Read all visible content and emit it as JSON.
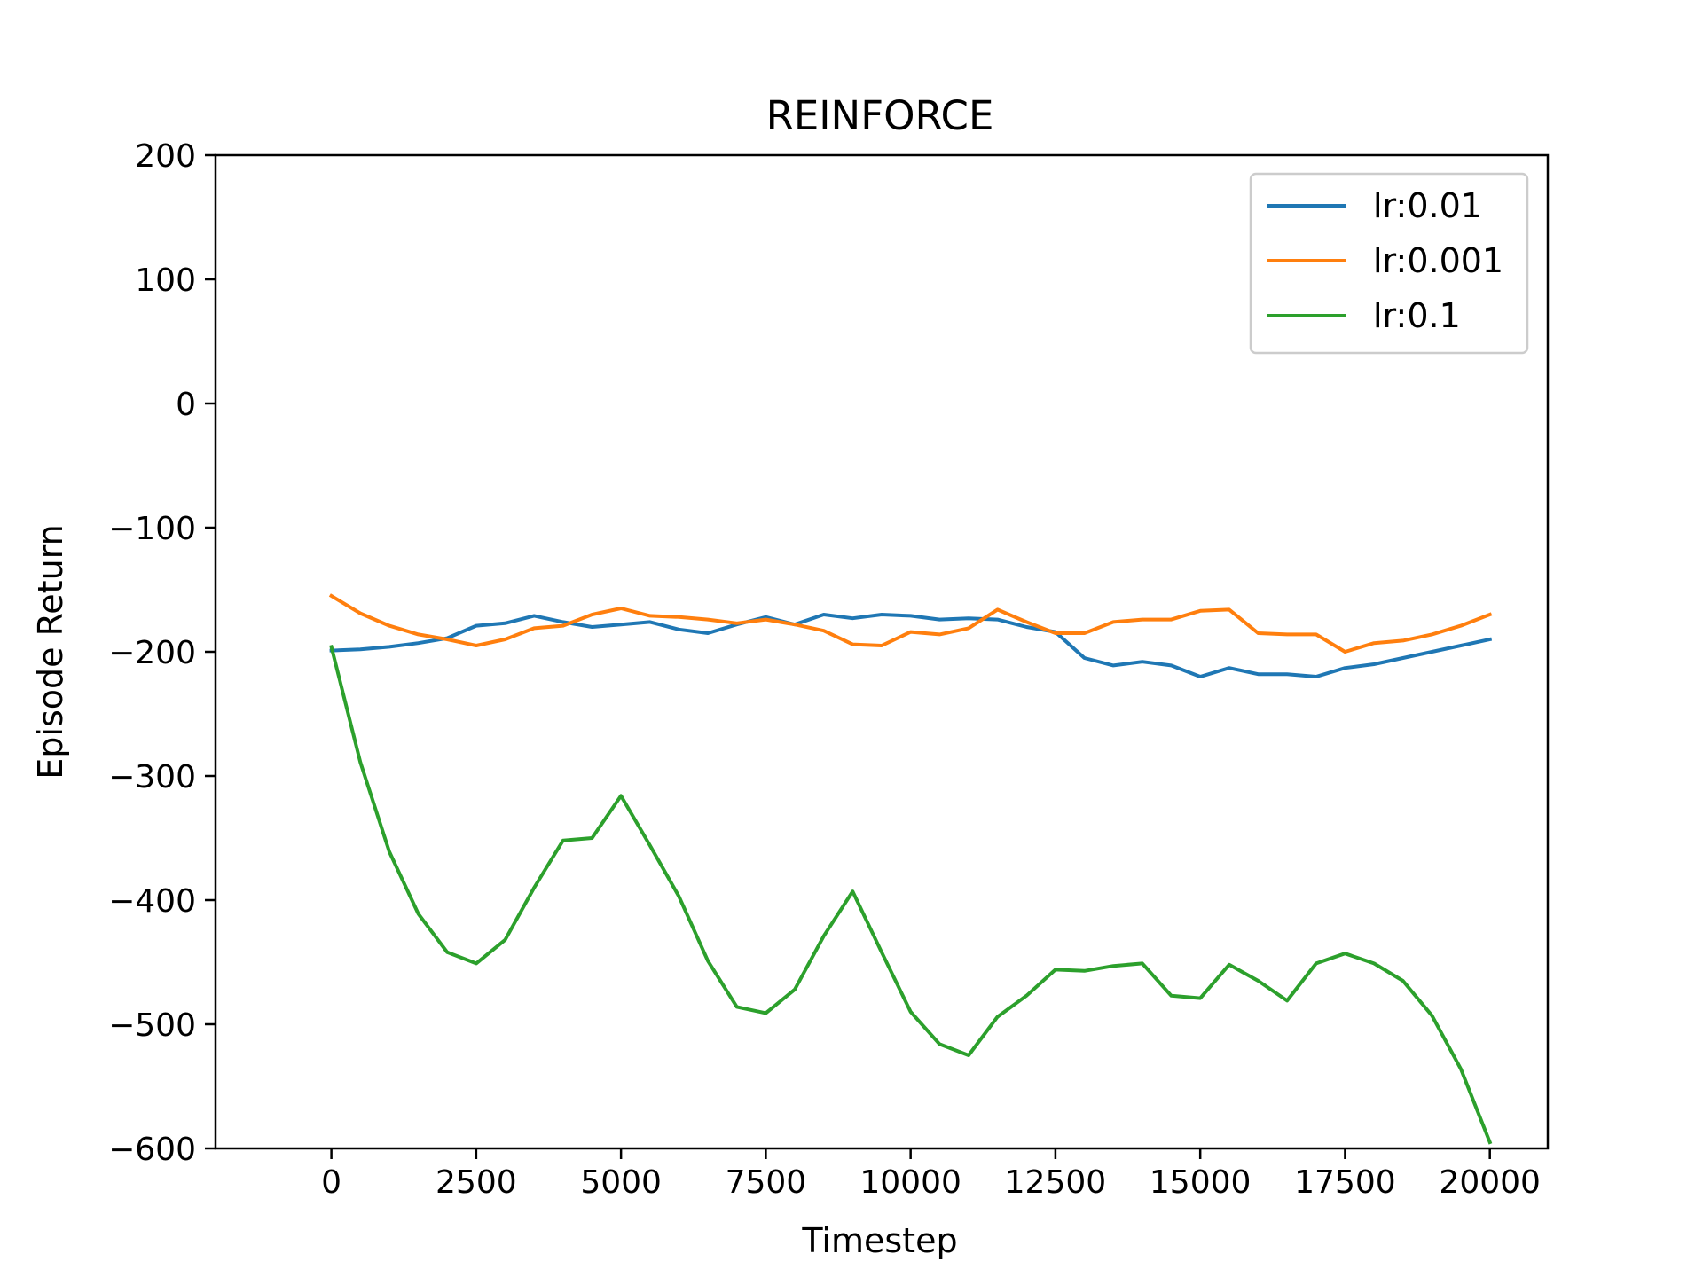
{
  "chart_data": {
    "type": "line",
    "title": "REINFORCE",
    "xlabel": "Timestep",
    "ylabel": "Episode Return",
    "xlim": [
      -2000,
      21000
    ],
    "ylim": [
      -600,
      200
    ],
    "xticks": [
      0,
      2500,
      5000,
      7500,
      10000,
      12500,
      15000,
      17500,
      20000
    ],
    "yticks": [
      200,
      100,
      0,
      -100,
      -200,
      -300,
      -400,
      -500,
      -600
    ],
    "xtick_labels": [
      "0",
      "2500",
      "5000",
      "7500",
      "10000",
      "12500",
      "15000",
      "17500",
      "20000"
    ],
    "ytick_labels": [
      "200",
      "100",
      "0",
      "−100",
      "−200",
      "−300",
      "−400",
      "−500",
      "−600"
    ],
    "grid": false,
    "legend_position": "top-right",
    "x": [
      0,
      500,
      1000,
      1500,
      2000,
      2500,
      3000,
      3500,
      4000,
      4500,
      5000,
      5500,
      6000,
      6500,
      7000,
      7500,
      8000,
      8500,
      9000,
      9500,
      10000,
      10500,
      11000,
      11500,
      12000,
      12500,
      13000,
      13500,
      14000,
      14500,
      15000,
      15500,
      16000,
      16500,
      17000,
      17500,
      18000,
      18500,
      19000,
      19500,
      20000
    ],
    "series": [
      {
        "name": "lr:0.01",
        "color": "#1f77b4",
        "values": [
          -199,
          -198,
          -196,
          -193,
          -189,
          -179,
          -177,
          -171,
          -176,
          -180,
          -178,
          -176,
          -182,
          -185,
          -178,
          -172,
          -178,
          -170,
          -173,
          -170,
          -171,
          -174,
          -173,
          -174,
          -180,
          -184,
          -205,
          -211,
          -208,
          -211,
          -220,
          -213,
          -218,
          -218,
          -220,
          -213,
          -210,
          -205,
          -200,
          -195,
          -190
        ]
      },
      {
        "name": "lr:0.001",
        "color": "#ff7f0e",
        "values": [
          -155,
          -169,
          -179,
          -186,
          -190,
          -195,
          -190,
          -181,
          -179,
          -170,
          -165,
          -171,
          -172,
          -174,
          -177,
          -174,
          -178,
          -183,
          -194,
          -195,
          -184,
          -186,
          -181,
          -166,
          -176,
          -185,
          -185,
          -176,
          -174,
          -174,
          -167,
          -166,
          -185,
          -186,
          -186,
          -200,
          -193,
          -191,
          -186,
          -179,
          -170
        ]
      },
      {
        "name": "lr:0.1",
        "color": "#2ca02c",
        "values": [
          -196,
          -289,
          -361,
          -411,
          -442,
          -451,
          -432,
          -390,
          -352,
          -350,
          -316,
          -356,
          -397,
          -449,
          -486,
          -491,
          -472,
          -429,
          -393,
          -442,
          -490,
          -516,
          -525,
          -494,
          -477,
          -456,
          -457,
          -453,
          -451,
          -477,
          -479,
          -452,
          -465,
          -481,
          -451,
          -443,
          -451,
          -465,
          -493,
          -536,
          -595
        ]
      }
    ]
  }
}
